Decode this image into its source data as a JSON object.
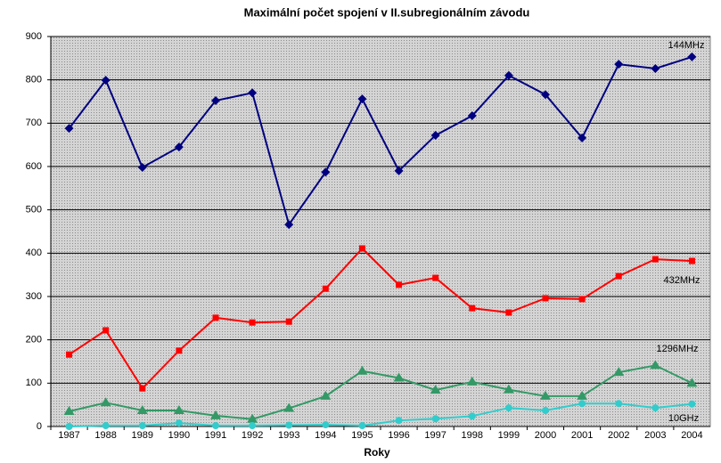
{
  "chart_data": {
    "type": "line",
    "title": "Maximální počet spojení v II.subregionálním závodu",
    "x_label": "Roky",
    "categories": [
      "1987",
      "1988",
      "1989",
      "1990",
      "1991",
      "1992",
      "1993",
      "1994",
      "1995",
      "1996",
      "1997",
      "1998",
      "1999",
      "2000",
      "2001",
      "2002",
      "2003",
      "2004"
    ],
    "series": [
      {
        "name": "144MHz",
        "color": "#000080",
        "marker": "diamond",
        "values": [
          688,
          799,
          598,
          645,
          752,
          770,
          466,
          587,
          756,
          590,
          672,
          717,
          810,
          766,
          666,
          836,
          826,
          853
        ]
      },
      {
        "name": "432MHz",
        "color": "#ff0000",
        "marker": "square",
        "values": [
          166,
          222,
          88,
          175,
          251,
          240,
          242,
          318,
          411,
          327,
          343,
          273,
          263,
          296,
          294,
          347,
          386,
          382
        ]
      },
      {
        "name": "1296MHz",
        "color": "#339966",
        "marker": "triangle",
        "values": [
          35,
          55,
          37,
          37,
          25,
          17,
          42,
          70,
          128,
          112,
          84,
          103,
          85,
          70,
          70,
          125,
          141,
          100
        ]
      },
      {
        "name": "10GHz",
        "color": "#33cccc",
        "marker": "circle",
        "values": [
          0,
          2,
          2,
          8,
          2,
          2,
          3,
          4,
          2,
          14,
          18,
          24,
          43,
          37,
          53,
          53,
          43,
          52
        ]
      }
    ],
    "ylim": [
      0,
      900
    ],
    "yticks": [
      0,
      100,
      200,
      300,
      400,
      500,
      600,
      700,
      800,
      900
    ],
    "grid": true
  }
}
